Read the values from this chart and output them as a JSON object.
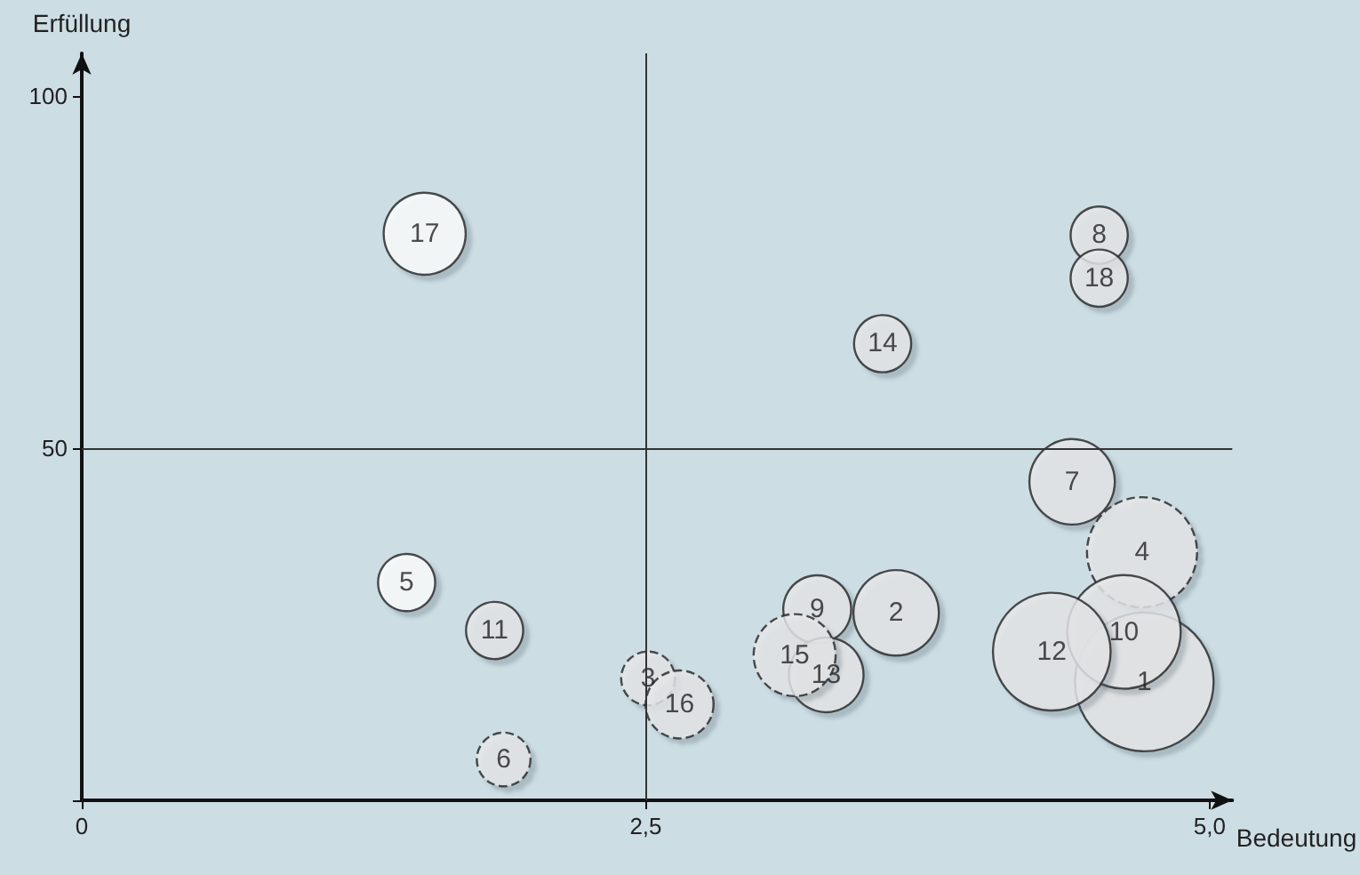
{
  "chart_data": {
    "type": "bubble",
    "xlabel": "Bedeutung",
    "ylabel": "Erfüllung",
    "xlim": [
      0,
      5.1
    ],
    "ylim": [
      0,
      106
    ],
    "xticks": [
      0,
      {
        "value": 2.5,
        "label": "2,5"
      },
      {
        "value": 5,
        "label": "5,0"
      }
    ],
    "yticks": [
      {
        "value": 0,
        "label": null
      },
      50,
      100
    ],
    "grid": false,
    "legend": false,
    "marker": "circle",
    "line_style": "solid",
    "ref_lines": [
      {
        "axis": "x",
        "value": 2.5,
        "label": null,
        "color": "#333333"
      },
      {
        "axis": "y",
        "value": 50,
        "label": null,
        "color": "#333333"
      }
    ],
    "series": [
      {
        "name": "17",
        "color": "#ffffff",
        "x": [
          1.52
        ],
        "values": [
          80.4
        ],
        "sizes": [
          0.35
        ]
      },
      {
        "name": "8",
        "color": "#e6e7e9",
        "x": [
          4.51
        ],
        "values": [
          80.2
        ],
        "sizes": [
          0.17
        ]
      },
      {
        "name": "18",
        "color": "#e6e7e9",
        "x": [
          4.51
        ],
        "values": [
          74.1
        ],
        "sizes": [
          0.17
        ]
      },
      {
        "name": "14",
        "color": "#e6e7e9",
        "x": [
          3.55
        ],
        "values": [
          64.8
        ],
        "sizes": [
          0.17
        ]
      },
      {
        "name": "7",
        "color": "#e6e7e9",
        "x": [
          4.39
        ],
        "values": [
          45.2
        ],
        "sizes": [
          0.38
        ]
      },
      {
        "name": "4",
        "color": "#e6e7e9",
        "x": [
          4.7
        ],
        "values": [
          35.2
        ],
        "sizes": [
          0.63
        ],
        "line_style": "dashed"
      },
      {
        "name": "5",
        "color": "#ffffff",
        "x": [
          1.44
        ],
        "values": [
          30.9
        ],
        "sizes": [
          0.17
        ]
      },
      {
        "name": "9",
        "color": "#e6e7e9",
        "x": [
          3.26
        ],
        "values": [
          27.1
        ],
        "sizes": [
          0.24
        ]
      },
      {
        "name": "2",
        "color": "#e6e7e9",
        "x": [
          3.61
        ],
        "values": [
          26.6
        ],
        "sizes": [
          0.38
        ]
      },
      {
        "name": "11",
        "color": "#e6e7e9",
        "x": [
          1.83
        ],
        "values": [
          24.1
        ],
        "sizes": [
          0.17
        ]
      },
      {
        "name": "1",
        "color": "#e6e7e9",
        "x": [
          4.71
        ],
        "values": [
          16.8
        ],
        "sizes": [
          1
        ]
      },
      {
        "name": "10",
        "color": "#e6e7e9",
        "x": [
          4.62
        ],
        "values": [
          23.9
        ],
        "sizes": [
          0.67
        ]
      },
      {
        "name": "12",
        "color": "#e6e7e9",
        "x": [
          4.3
        ],
        "values": [
          21.1
        ],
        "sizes": [
          0.72
        ]
      },
      {
        "name": "13",
        "color": "#e6e7e9",
        "x": [
          3.3
        ],
        "values": [
          17.8
        ],
        "sizes": [
          0.29
        ]
      },
      {
        "name": "15",
        "color": "#e6e7e9",
        "x": [
          3.16
        ],
        "values": [
          20.6
        ],
        "sizes": [
          0.35
        ],
        "line_style": "dashed"
      },
      {
        "name": "3",
        "color": "#e6e7e9",
        "x": [
          2.51
        ],
        "values": [
          17.3
        ],
        "sizes": [
          0.15
        ],
        "line_style": "dashed"
      },
      {
        "name": "16",
        "color": "#e6e7e9",
        "x": [
          2.65
        ],
        "values": [
          13.6
        ],
        "sizes": [
          0.24
        ],
        "line_style": "dashed"
      },
      {
        "name": "6",
        "color": "#e6e7e9",
        "x": [
          1.87
        ],
        "values": [
          5.8
        ],
        "sizes": [
          0.15
        ],
        "line_style": "dashed"
      }
    ]
  }
}
